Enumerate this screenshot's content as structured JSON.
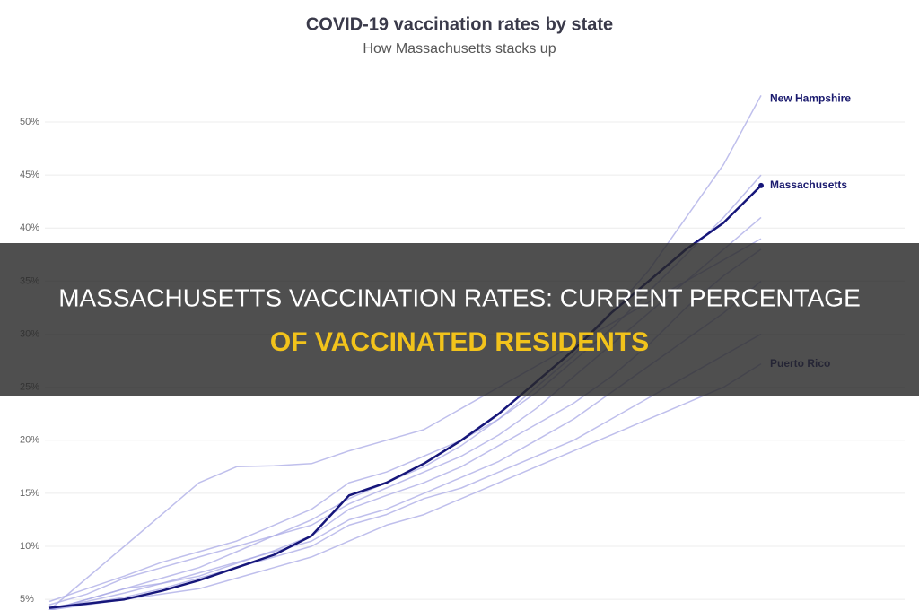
{
  "chart_data": {
    "type": "line",
    "title": "COVID-19 vaccination rates by state",
    "subtitle": "How Massachusetts stacks up",
    "ylim": [
      4,
      54.9
    ],
    "yticks": [
      {
        "value": 5,
        "label": "5%"
      },
      {
        "value": 10,
        "label": "10%"
      },
      {
        "value": 15,
        "label": "15%"
      },
      {
        "value": 20,
        "label": "20%"
      },
      {
        "value": 25,
        "label": "25%"
      },
      {
        "value": 30,
        "label": "30%"
      },
      {
        "value": 35,
        "label": "35%"
      },
      {
        "value": 40,
        "label": "40%"
      },
      {
        "value": 45,
        "label": "45%"
      },
      {
        "value": 50,
        "label": "50%"
      }
    ],
    "grid": true,
    "series": [
      {
        "color": "#a9a9e6",
        "values": [
          4,
          7,
          10,
          13,
          16,
          17.5,
          17.6,
          17.8,
          19,
          20,
          21,
          23,
          25,
          27,
          29,
          31,
          33,
          35,
          37,
          39
        ]
      },
      {
        "color": "#a9a9e6",
        "values": [
          4.5,
          5.5,
          7,
          8,
          9,
          10,
          11,
          12,
          14,
          15.5,
          17,
          18.5,
          20.5,
          23,
          26,
          29,
          32,
          35,
          38,
          41
        ]
      },
      {
        "color": "#a9a9e6",
        "values": [
          4,
          5,
          6,
          6.5,
          7.5,
          8.5,
          9.5,
          10.5,
          12.5,
          13.5,
          15,
          16.5,
          18,
          20,
          22,
          24.5,
          27,
          29.5,
          32,
          35
        ]
      },
      {
        "color": "#a9a9e6",
        "values": [
          4.2,
          4.8,
          5.6,
          6.5,
          7.2,
          8.4,
          9.6,
          11,
          13.5,
          14.8,
          16,
          17.5,
          19.5,
          21.5,
          23.5,
          26,
          29,
          32.5,
          35.5,
          38
        ]
      },
      {
        "color": "#a9a9e6",
        "values": [
          4,
          4.6,
          5.2,
          6,
          7,
          8,
          9,
          10,
          12,
          13,
          14.5,
          15.5,
          17,
          18.5,
          20,
          22,
          24,
          26,
          28,
          30
        ]
      },
      {
        "color": "#a9a9e6",
        "values": [
          4.8,
          6,
          7.2,
          8.5,
          9.5,
          10.5,
          12,
          13.5,
          16,
          17,
          18.5,
          20,
          22,
          24.5,
          27.5,
          30.5,
          34,
          37.5,
          41,
          45
        ]
      },
      {
        "name": "New Hampshire",
        "color": "#a9a9e6",
        "values": [
          4,
          5,
          6,
          7,
          8,
          9.5,
          11,
          12.5,
          14.5,
          16,
          17.5,
          19.5,
          22,
          25,
          28,
          32,
          36,
          41,
          46,
          52.5
        ]
      },
      {
        "name": "Puerto Rico",
        "color": "#a9a9e6",
        "values": [
          4,
          4.5,
          5,
          5.5,
          6,
          7,
          8,
          9,
          10.5,
          12,
          13,
          14.5,
          16,
          17.5,
          19,
          20.5,
          22,
          23.5,
          25,
          27.2
        ]
      },
      {
        "name": "Massachusetts",
        "color": "#16167a",
        "values": [
          4.2,
          4.6,
          5,
          5.8,
          6.8,
          8,
          9.2,
          11,
          14.8,
          16,
          17.8,
          20,
          22.5,
          25.5,
          28.5,
          32,
          35,
          38,
          40.5,
          44
        ]
      }
    ]
  },
  "banner": {
    "line1": "MASSACHUSETTS VACCINATION RATES: CURRENT PERCENTAGE",
    "line2": "OF VACCINATED RESIDENTS"
  }
}
